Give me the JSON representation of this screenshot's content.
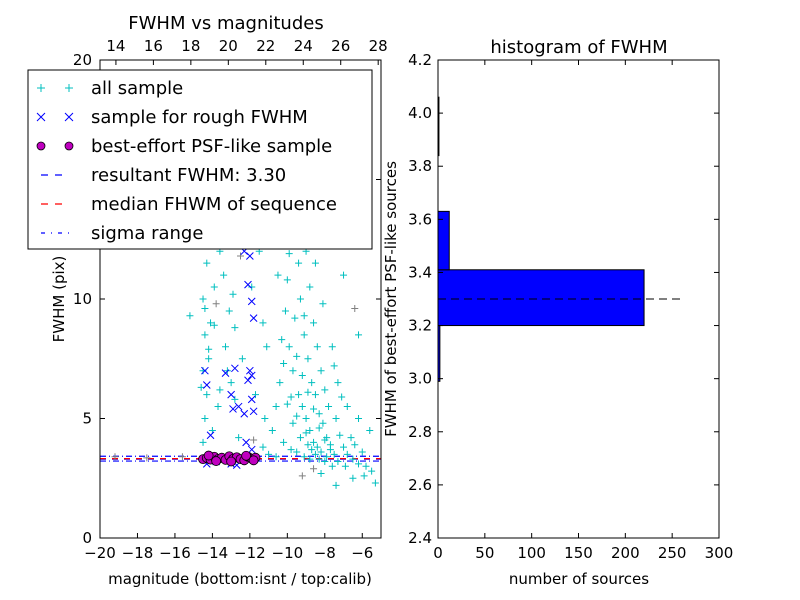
{
  "chart_data": [
    {
      "type": "scatter",
      "title": "FWHM vs magnitudes",
      "xlabel": "magnitude (bottom:isnt / top:calib)",
      "ylabel": "FWHM (pix)",
      "xlim": [
        -20,
        -5
      ],
      "ylim": [
        0,
        20
      ],
      "xticks": [
        "−20",
        "−18",
        "−16",
        "−14",
        "−12",
        "−10",
        "−8",
        "−6"
      ],
      "xtick_values": [
        -20,
        -18,
        -16,
        -14,
        -12,
        -10,
        -8,
        -6
      ],
      "yticks": [
        "0",
        "5",
        "10",
        "15",
        "20"
      ],
      "ytick_values": [
        0,
        5,
        10,
        15,
        20
      ],
      "top_xlim": [
        13.15,
        28.15
      ],
      "top_xticks": [
        "14",
        "16",
        "18",
        "20",
        "22",
        "24",
        "26",
        "28"
      ],
      "top_xtick_values": [
        14,
        16,
        18,
        20,
        22,
        24,
        26,
        28
      ],
      "grid": false,
      "legend_position": "upper-left",
      "legend": [
        {
          "label": "all sample",
          "marker": "plus",
          "color": "#00bfbf"
        },
        {
          "label": "sample for rough FWHM",
          "marker": "x",
          "color": "#0000ff"
        },
        {
          "label": "best-effort PSF-like sample",
          "marker": "circle",
          "color": "#bf00bf"
        },
        {
          "label": "resultant FWHM: 3.30",
          "marker": "dashed",
          "color": "#0000ff"
        },
        {
          "label": "median FHWM of sequence",
          "marker": "dashed",
          "color": "#ff0000"
        },
        {
          "label": "sigma range",
          "marker": "dashdot",
          "color": "#0000ff"
        }
      ],
      "series": [
        {
          "name": "all sample",
          "color": "#00bfbf",
          "points": [
            [
              -14.5,
              4
            ],
            [
              -14.4,
              5
            ],
            [
              -14.3,
              6
            ],
            [
              -14.5,
              7
            ],
            [
              -14.2,
              7.5
            ],
            [
              -14.4,
              8.5
            ],
            [
              -14.1,
              9
            ],
            [
              -14.5,
              10
            ],
            [
              -13.9,
              10.5
            ],
            [
              -14.3,
              11.5
            ],
            [
              -13.6,
              12
            ],
            [
              -13.8,
              13.5
            ],
            [
              -14.0,
              14.5
            ],
            [
              -13.5,
              15.5
            ],
            [
              -13.2,
              16.5
            ],
            [
              -13.9,
              17.2
            ],
            [
              -13.4,
              11
            ],
            [
              -13.1,
              9.5
            ],
            [
              -13.3,
              8
            ],
            [
              -13.0,
              6.5
            ],
            [
              -13.7,
              5.5
            ],
            [
              -14.0,
              4.5
            ],
            [
              -13.2,
              7
            ],
            [
              -12.8,
              8.8
            ],
            [
              -12.9,
              10.2
            ],
            [
              -15.2,
              9.3
            ],
            [
              -14.8,
              12.3
            ],
            [
              -13.2,
              13
            ],
            [
              -12.7,
              12.5
            ],
            [
              -14.6,
              6.3
            ],
            [
              -14.2,
              7.9
            ],
            [
              -13.9,
              8.9
            ],
            [
              -14.4,
              9.6
            ],
            [
              -13.6,
              6.2
            ],
            [
              -12,
              18
            ],
            [
              -11.6,
              19
            ],
            [
              -11.8,
              15
            ],
            [
              -12.2,
              14
            ],
            [
              -11.5,
              12
            ],
            [
              -11.9,
              10.5
            ],
            [
              -11.3,
              9
            ],
            [
              -12.4,
              7.5
            ],
            [
              -11.7,
              6
            ],
            [
              -11.2,
              5
            ],
            [
              -12.6,
              4.2
            ],
            [
              -11.1,
              8
            ],
            [
              -11.4,
              13.5
            ],
            [
              -12.8,
              5.8
            ],
            [
              -11.0,
              16.5
            ],
            [
              -10.8,
              18.8
            ],
            [
              -10.5,
              11
            ],
            [
              -10.2,
              12.5
            ],
            [
              -10,
              14
            ],
            [
              -9.8,
              16
            ],
            [
              -10.3,
              17.5
            ],
            [
              -9.5,
              19
            ],
            [
              -9.2,
              18
            ],
            [
              -9.6,
              13
            ],
            [
              -10.1,
              9.5
            ],
            [
              -9.9,
              8
            ],
            [
              -9.7,
              7
            ],
            [
              -9.4,
              6
            ],
            [
              -9.2,
              5.5
            ],
            [
              -9,
              5
            ],
            [
              -8.8,
              4.5
            ],
            [
              -8.6,
              4
            ],
            [
              -8.4,
              3.8
            ],
            [
              -8.2,
              3.6
            ],
            [
              -9.3,
              10
            ],
            [
              -9.1,
              8.5
            ],
            [
              -8.9,
              7.5
            ],
            [
              -8.7,
              6.5
            ],
            [
              -8.5,
              6
            ],
            [
              -8.3,
              5.2
            ],
            [
              -8.1,
              4.8
            ],
            [
              -7.9,
              4.2
            ],
            [
              -7.7,
              3.9
            ],
            [
              -7.5,
              3.5
            ],
            [
              -10.4,
              6.5
            ],
            [
              -10.6,
              5.5
            ],
            [
              -10.8,
              4.5
            ],
            [
              -10.2,
              4
            ],
            [
              -9.8,
              3.7
            ],
            [
              -9.5,
              3.6
            ],
            [
              -9.1,
              3.4
            ],
            [
              -8.8,
              3.3
            ],
            [
              -8.0,
              3.2
            ],
            [
              -7.6,
              3.0
            ],
            [
              -10,
              10.8
            ],
            [
              -9.4,
              11.5
            ],
            [
              -9.0,
              12
            ],
            [
              -8.6,
              9
            ],
            [
              -8.4,
              8
            ],
            [
              -8.2,
              7
            ],
            [
              -8.0,
              6.2
            ],
            [
              -7.8,
              5.5
            ],
            [
              -7.4,
              5
            ],
            [
              -7.2,
              4.3
            ],
            [
              -7.0,
              3.8
            ],
            [
              -6.8,
              3.5
            ],
            [
              -6.5,
              3.3
            ],
            [
              -6.2,
              3.1
            ],
            [
              -5.8,
              3.0
            ],
            [
              -5.5,
              2.8
            ],
            [
              -6.0,
              3.6
            ],
            [
              -6.6,
              4.2
            ],
            [
              -7.3,
              6.5
            ],
            [
              -8.8,
              10.5
            ],
            [
              -9.6,
              9.2
            ],
            [
              -10.3,
              8.3
            ],
            [
              -9.0,
              14.5
            ],
            [
              -8.5,
              11.5
            ],
            [
              -7.6,
              8
            ],
            [
              -6.8,
              5.5
            ],
            [
              -6.2,
              5
            ],
            [
              -5.6,
              4.5
            ],
            [
              -6.5,
              2.5
            ],
            [
              -7.4,
              2.2
            ],
            [
              -8.2,
              2.7
            ],
            [
              -5.3,
              2.3
            ],
            [
              -7.0,
              11
            ],
            [
              -8.0,
              14
            ],
            [
              -6.2,
              8.5
            ],
            [
              -9.7,
              4.8
            ],
            [
              -10.0,
              5.6
            ],
            [
              -9.3,
              4.2
            ],
            [
              -8.9,
              3.9
            ],
            [
              -8.5,
              3.5
            ],
            [
              -11,
              3.5
            ],
            [
              -11.3,
              3.8
            ],
            [
              -10.6,
              3.4
            ],
            [
              -9.5,
              7.6
            ],
            [
              -9.2,
              6.8
            ],
            [
              -8.9,
              6.1
            ],
            [
              -8.6,
              5.4
            ],
            [
              -8.3,
              4.6
            ],
            [
              -8.0,
              4.1
            ],
            [
              -7.7,
              3.7
            ],
            [
              -9.8,
              5.9
            ],
            [
              -9.5,
              5.1
            ],
            [
              -9.0,
              4.4
            ],
            [
              -8.7,
              3.7
            ],
            [
              -8.3,
              3.3
            ],
            [
              -7.9,
              3.4
            ],
            [
              -7.3,
              3.2
            ],
            [
              -6.9,
              3.0
            ],
            [
              -9.9,
              11.9
            ],
            [
              -9.4,
              14.7
            ],
            [
              -9.7,
              17.3
            ],
            [
              -8.7,
              13.2
            ],
            [
              -8.1,
              9.8
            ],
            [
              -7.5,
              7.2
            ],
            [
              -7.1,
              5.9
            ],
            [
              -6.4,
              3.9
            ],
            [
              -5.9,
              2.6
            ],
            [
              -10.2,
              7.3
            ],
            [
              -9.1,
              9.3
            ]
          ]
        },
        {
          "name": "all sample (gray)",
          "color": "#808080",
          "points": [
            [
              -12.5,
              11.8
            ],
            [
              -13.8,
              9.8
            ],
            [
              -9.2,
              2.6
            ],
            [
              -8.6,
              2.9
            ],
            [
              -11.8,
              4.1
            ],
            [
              -6.4,
              9.6
            ],
            [
              -10.5,
              15.3
            ],
            [
              -15.6,
              3.4
            ],
            [
              -17.5,
              3.35
            ],
            [
              -19.2,
              3.4
            ]
          ]
        },
        {
          "name": "sample for rough FWHM",
          "color": "#0000ff",
          "points": [
            [
              -14.4,
              7
            ],
            [
              -14.3,
              6.4
            ],
            [
              -14.1,
              4.3
            ],
            [
              -14.3,
              3.1
            ],
            [
              -13.3,
              6.9
            ],
            [
              -13.0,
              6
            ],
            [
              -12.9,
              5.4
            ],
            [
              -12.8,
              7.1
            ],
            [
              -12.0,
              7
            ],
            [
              -12.1,
              6.6
            ],
            [
              -11.9,
              6.8
            ],
            [
              -11.8,
              9.2
            ],
            [
              -11.9,
              9.9
            ],
            [
              -12.1,
              10.6
            ],
            [
              -11.9,
              12.3
            ],
            [
              -12.0,
              11.8
            ],
            [
              -12.3,
              12
            ],
            [
              -13.1,
              12.8
            ],
            [
              -12.6,
              13.3
            ],
            [
              -12.1,
              15.6
            ],
            [
              -12.0,
              14.3
            ],
            [
              -12.2,
              4.0
            ],
            [
              -11.9,
              3.7
            ],
            [
              -12.6,
              5.5
            ],
            [
              -12.3,
              5.2
            ],
            [
              -11.9,
              5.8
            ],
            [
              -11.8,
              5.3
            ],
            [
              -13.8,
              3.2
            ],
            [
              -13.0,
              3.1
            ],
            [
              -12.7,
              3.05
            ]
          ]
        },
        {
          "name": "best-effort PSF-like sample",
          "color": "#bf00bf",
          "points": [
            [
              -14.5,
              3.3
            ],
            [
              -14.3,
              3.35
            ],
            [
              -14.1,
              3.28
            ],
            [
              -13.9,
              3.4
            ],
            [
              -13.7,
              3.3
            ],
            [
              -13.5,
              3.36
            ],
            [
              -13.3,
              3.27
            ],
            [
              -13.1,
              3.42
            ],
            [
              -12.9,
              3.31
            ],
            [
              -12.7,
              3.38
            ],
            [
              -12.5,
              3.3
            ],
            [
              -12.3,
              3.25
            ],
            [
              -12.1,
              3.4
            ],
            [
              -11.9,
              3.32
            ],
            [
              -11.7,
              3.36
            ],
            [
              -13.8,
              3.22
            ],
            [
              -13.0,
              3.2
            ],
            [
              -12.2,
              3.44
            ],
            [
              -14.2,
              3.45
            ],
            [
              -11.8,
              3.25
            ]
          ]
        }
      ],
      "hlines": [
        {
          "name": "resultant FWHM",
          "y": 3.3,
          "color": "#0000ff",
          "style": "dashed"
        },
        {
          "name": "median FHWM of sequence",
          "y": 3.32,
          "color": "#ff0000",
          "style": "dashed"
        },
        {
          "name": "sigma range upper",
          "y": 3.42,
          "color": "#0000ff",
          "style": "dashdot"
        },
        {
          "name": "sigma range lower",
          "y": 3.22,
          "color": "#0000ff",
          "style": "dashdot"
        }
      ]
    },
    {
      "type": "bar",
      "orientation": "horizontal",
      "title": "histogram of FWHM",
      "xlabel": "number of sources",
      "ylabel": "FWHM of best-effort PSF-like sources",
      "xlim": [
        0,
        300
      ],
      "ylim": [
        2.4,
        4.2
      ],
      "xticks": [
        "0",
        "50",
        "100",
        "150",
        "200",
        "250",
        "300"
      ],
      "xtick_values": [
        0,
        50,
        100,
        150,
        200,
        250,
        300
      ],
      "yticks": [
        "2.4",
        "2.6",
        "2.8",
        "3.0",
        "3.2",
        "3.4",
        "3.6",
        "3.8",
        "4.0",
        "4.2"
      ],
      "ytick_values": [
        2.4,
        2.6,
        2.8,
        3.0,
        3.2,
        3.4,
        3.6,
        3.8,
        4.0,
        4.2
      ],
      "bin_edges": [
        2.99,
        3.2,
        3.41,
        3.63,
        3.84,
        4.06
      ],
      "values": [
        2,
        220,
        12,
        0,
        1
      ],
      "color": "#0000ff",
      "hline": {
        "y": 3.3,
        "x_range": [
          0,
          260
        ],
        "color": "#000000",
        "style": "dashed"
      }
    }
  ]
}
